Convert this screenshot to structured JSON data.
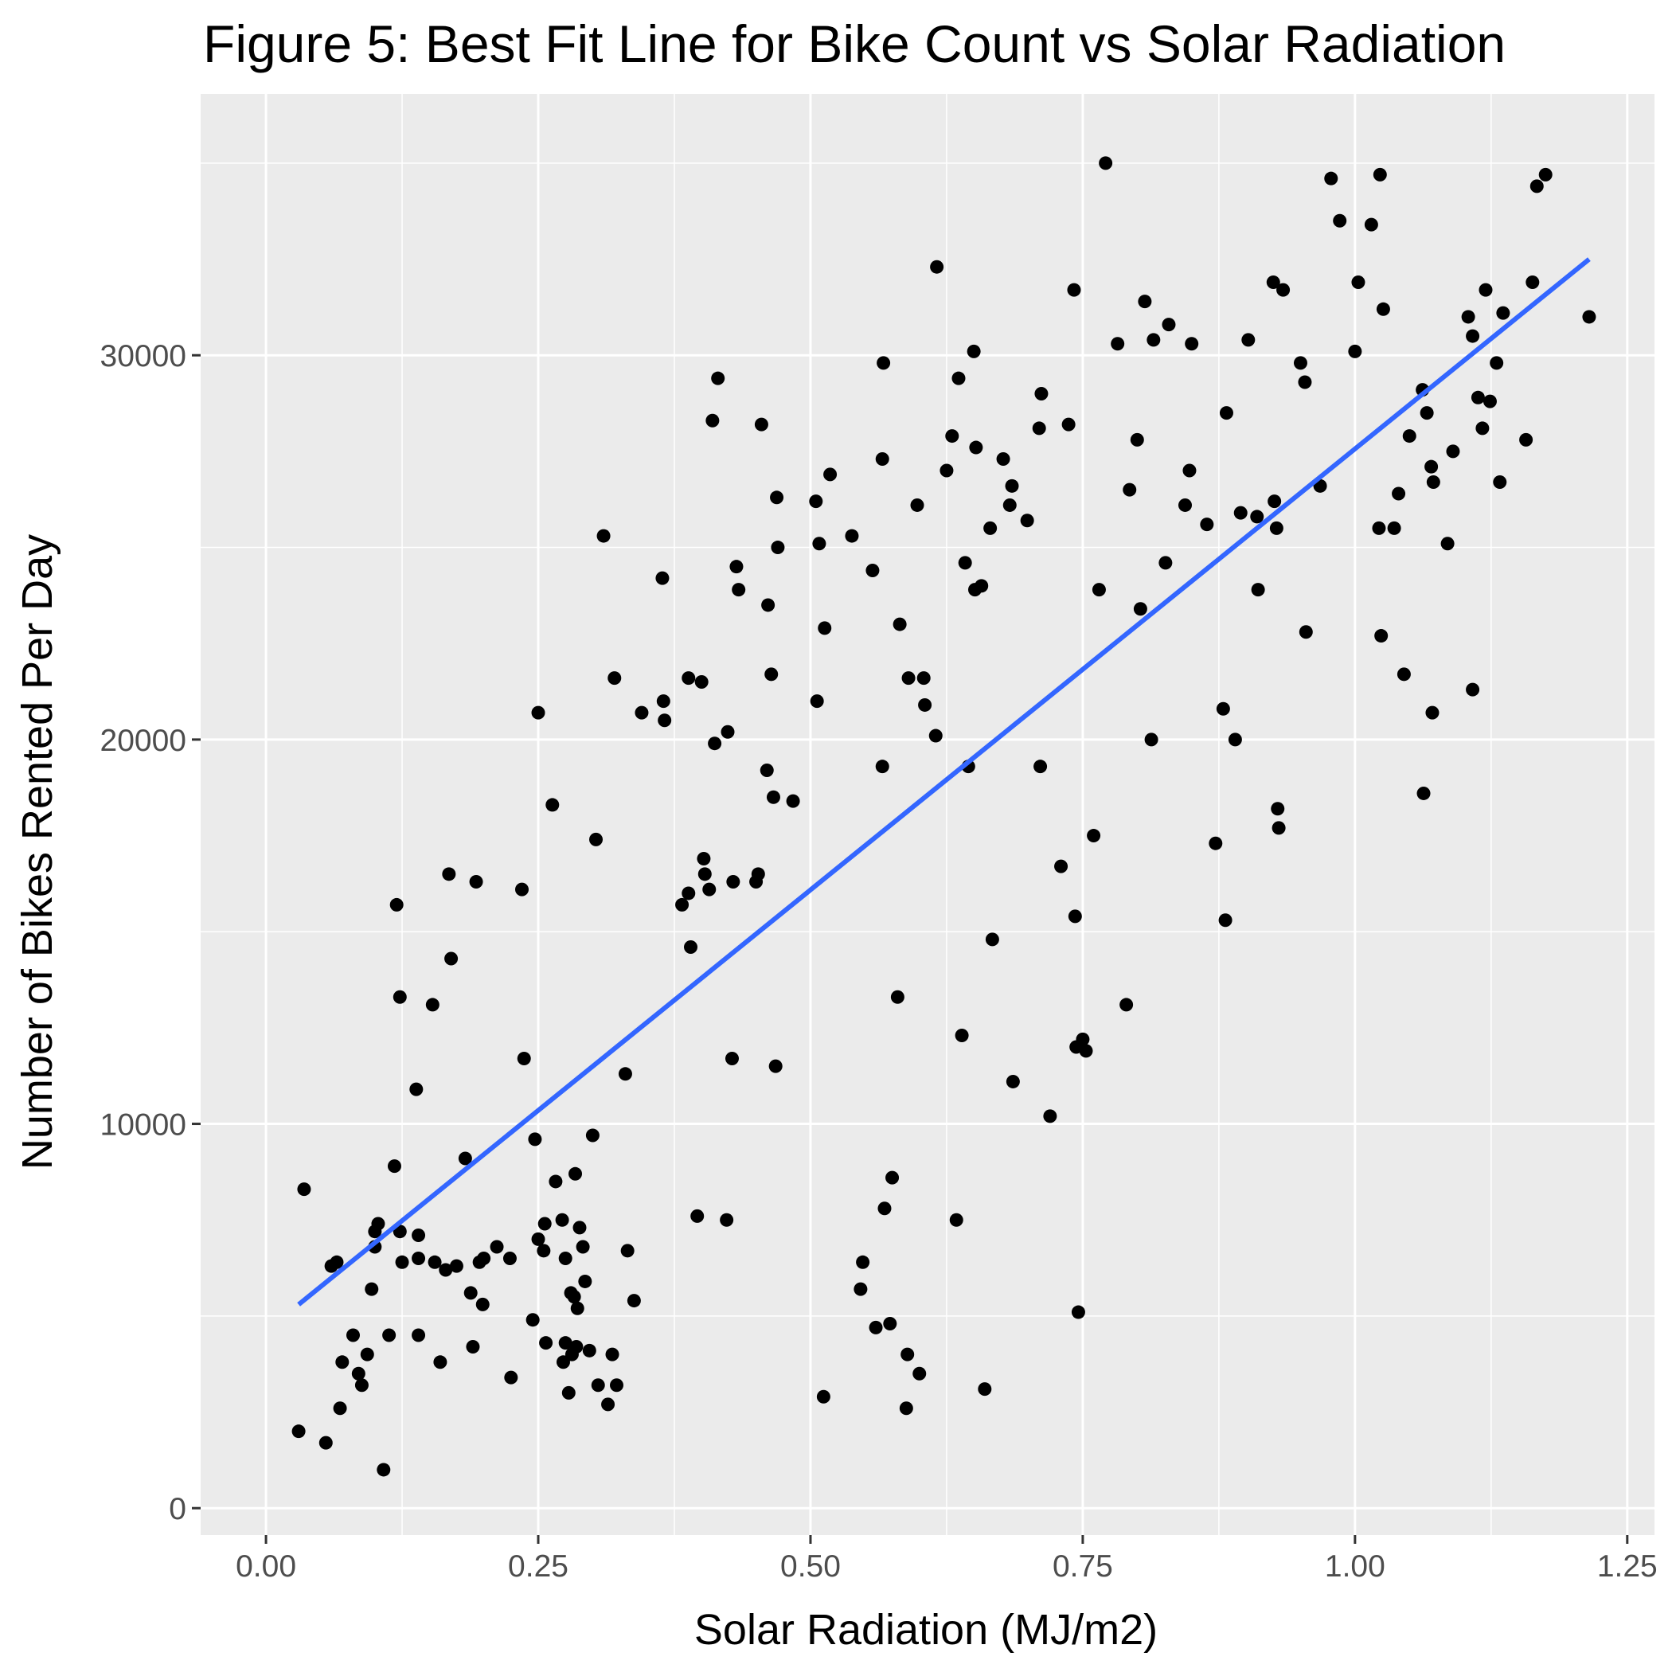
{
  "chart_data": {
    "type": "scatter",
    "title": "Figure 5: Best Fit Line for Bike Count vs Solar Radiation",
    "xlabel": "Solar Radiation (MJ/m2)",
    "ylabel": "Number of Bikes Rented Per Day",
    "xlim": [
      -0.06,
      1.275
    ],
    "ylim": [
      -700,
      36800
    ],
    "xticks": [
      0.0,
      0.25,
      0.5,
      0.75,
      1.0,
      1.25
    ],
    "xtick_labels": [
      "0.00",
      "0.25",
      "0.50",
      "0.75",
      "1.00",
      "1.25"
    ],
    "yticks": [
      0,
      10000,
      20000,
      30000
    ],
    "ytick_labels": [
      "0",
      "10000",
      "20000",
      "30000"
    ],
    "grid": true,
    "background": "#ebebeb",
    "point_color": "#000000",
    "fit_line_color": "#3366ff",
    "fit_line": {
      "x": [
        0.03,
        1.215
      ],
      "y": [
        5300,
        32500
      ]
    },
    "points": [
      [
        0.03,
        2000
      ],
      [
        0.035,
        8300
      ],
      [
        0.055,
        1700
      ],
      [
        0.06,
        6300
      ],
      [
        0.065,
        6400
      ],
      [
        0.068,
        2600
      ],
      [
        0.07,
        3800
      ],
      [
        0.08,
        4500
      ],
      [
        0.085,
        3500
      ],
      [
        0.088,
        3200
      ],
      [
        0.093,
        4000
      ],
      [
        0.097,
        5700
      ],
      [
        0.1,
        6800
      ],
      [
        0.1,
        7200
      ],
      [
        0.103,
        7400
      ],
      [
        0.108,
        1000
      ],
      [
        0.113,
        4500
      ],
      [
        0.118,
        8900
      ],
      [
        0.12,
        15700
      ],
      [
        0.123,
        13300
      ],
      [
        0.123,
        7200
      ],
      [
        0.125,
        6400
      ],
      [
        0.138,
        10900
      ],
      [
        0.14,
        6500
      ],
      [
        0.14,
        4500
      ],
      [
        0.14,
        7100
      ],
      [
        0.153,
        13100
      ],
      [
        0.155,
        6400
      ],
      [
        0.16,
        3800
      ],
      [
        0.165,
        6200
      ],
      [
        0.168,
        16500
      ],
      [
        0.17,
        14300
      ],
      [
        0.175,
        6300
      ],
      [
        0.183,
        9100
      ],
      [
        0.188,
        5600
      ],
      [
        0.19,
        4200
      ],
      [
        0.193,
        16300
      ],
      [
        0.196,
        6400
      ],
      [
        0.199,
        5300
      ],
      [
        0.2,
        6500
      ],
      [
        0.212,
        6800
      ],
      [
        0.224,
        6500
      ],
      [
        0.225,
        3400
      ],
      [
        0.235,
        16100
      ],
      [
        0.237,
        11700
      ],
      [
        0.245,
        4900
      ],
      [
        0.247,
        9600
      ],
      [
        0.25,
        20700
      ],
      [
        0.25,
        7000
      ],
      [
        0.255,
        6700
      ],
      [
        0.256,
        7400
      ],
      [
        0.257,
        4300
      ],
      [
        0.263,
        18300
      ],
      [
        0.266,
        8500
      ],
      [
        0.272,
        7500
      ],
      [
        0.273,
        3800
      ],
      [
        0.275,
        6500
      ],
      [
        0.275,
        4300
      ],
      [
        0.278,
        3000
      ],
      [
        0.28,
        5600
      ],
      [
        0.281,
        4000
      ],
      [
        0.283,
        5500
      ],
      [
        0.284,
        8700
      ],
      [
        0.285,
        4200
      ],
      [
        0.286,
        5200
      ],
      [
        0.288,
        7300
      ],
      [
        0.291,
        6800
      ],
      [
        0.293,
        5900
      ],
      [
        0.297,
        4100
      ],
      [
        0.3,
        9700
      ],
      [
        0.303,
        17400
      ],
      [
        0.305,
        3200
      ],
      [
        0.31,
        25300
      ],
      [
        0.314,
        2700
      ],
      [
        0.318,
        4000
      ],
      [
        0.32,
        21600
      ],
      [
        0.322,
        3200
      ],
      [
        0.33,
        11300
      ],
      [
        0.332,
        6700
      ],
      [
        0.338,
        5400
      ],
      [
        0.345,
        20700
      ],
      [
        0.364,
        24200
      ],
      [
        0.365,
        21000
      ],
      [
        0.366,
        20500
      ],
      [
        0.382,
        15700
      ],
      [
        0.388,
        21600
      ],
      [
        0.388,
        16000
      ],
      [
        0.39,
        14600
      ],
      [
        0.396,
        7600
      ],
      [
        0.4,
        21500
      ],
      [
        0.402,
        16900
      ],
      [
        0.403,
        16500
      ],
      [
        0.407,
        16100
      ],
      [
        0.41,
        28300
      ],
      [
        0.412,
        19900
      ],
      [
        0.415,
        29400
      ],
      [
        0.423,
        7500
      ],
      [
        0.424,
        20200
      ],
      [
        0.428,
        11700
      ],
      [
        0.429,
        16300
      ],
      [
        0.432,
        24500
      ],
      [
        0.434,
        23900
      ],
      [
        0.45,
        16300
      ],
      [
        0.452,
        16500
      ],
      [
        0.455,
        28200
      ],
      [
        0.46,
        19200
      ],
      [
        0.461,
        23500
      ],
      [
        0.464,
        21700
      ],
      [
        0.466,
        18500
      ],
      [
        0.468,
        11500
      ],
      [
        0.469,
        26300
      ],
      [
        0.47,
        25000
      ],
      [
        0.484,
        18400
      ],
      [
        0.505,
        26200
      ],
      [
        0.506,
        21000
      ],
      [
        0.508,
        25100
      ],
      [
        0.512,
        2900
      ],
      [
        0.513,
        22900
      ],
      [
        0.518,
        26900
      ],
      [
        0.538,
        25300
      ],
      [
        0.546,
        5700
      ],
      [
        0.548,
        6400
      ],
      [
        0.557,
        24400
      ],
      [
        0.56,
        4700
      ],
      [
        0.566,
        19300
      ],
      [
        0.566,
        27300
      ],
      [
        0.567,
        29800
      ],
      [
        0.568,
        7800
      ],
      [
        0.573,
        4800
      ],
      [
        0.575,
        8600
      ],
      [
        0.58,
        13300
      ],
      [
        0.582,
        23000
      ],
      [
        0.588,
        2600
      ],
      [
        0.589,
        4000
      ],
      [
        0.59,
        21600
      ],
      [
        0.598,
        26100
      ],
      [
        0.6,
        3500
      ],
      [
        0.604,
        21600
      ],
      [
        0.605,
        20900
      ],
      [
        0.615,
        20100
      ],
      [
        0.616,
        32300
      ],
      [
        0.625,
        27000
      ],
      [
        0.63,
        27900
      ],
      [
        0.634,
        7500
      ],
      [
        0.636,
        29400
      ],
      [
        0.639,
        12300
      ],
      [
        0.642,
        24600
      ],
      [
        0.645,
        19300
      ],
      [
        0.65,
        30100
      ],
      [
        0.651,
        23900
      ],
      [
        0.652,
        27600
      ],
      [
        0.657,
        24000
      ],
      [
        0.66,
        3100
      ],
      [
        0.665,
        25500
      ],
      [
        0.667,
        14800
      ],
      [
        0.677,
        27300
      ],
      [
        0.683,
        26100
      ],
      [
        0.685,
        26600
      ],
      [
        0.686,
        11100
      ],
      [
        0.699,
        25700
      ],
      [
        0.71,
        28100
      ],
      [
        0.711,
        19300
      ],
      [
        0.712,
        29000
      ],
      [
        0.72,
        10200
      ],
      [
        0.73,
        16700
      ],
      [
        0.737,
        28200
      ],
      [
        0.742,
        31700
      ],
      [
        0.743,
        15400
      ],
      [
        0.744,
        12000
      ],
      [
        0.746,
        5100
      ],
      [
        0.75,
        12200
      ],
      [
        0.753,
        11900
      ],
      [
        0.76,
        17500
      ],
      [
        0.765,
        23900
      ],
      [
        0.771,
        35000
      ],
      [
        0.782,
        30300
      ],
      [
        0.79,
        13100
      ],
      [
        0.793,
        26500
      ],
      [
        0.8,
        27800
      ],
      [
        0.803,
        23400
      ],
      [
        0.807,
        31400
      ],
      [
        0.813,
        20000
      ],
      [
        0.815,
        30400
      ],
      [
        0.826,
        24600
      ],
      [
        0.829,
        30800
      ],
      [
        0.844,
        26100
      ],
      [
        0.848,
        27000
      ],
      [
        0.85,
        30300
      ],
      [
        0.864,
        25600
      ],
      [
        0.872,
        17300
      ],
      [
        0.879,
        20800
      ],
      [
        0.881,
        15300
      ],
      [
        0.882,
        28500
      ],
      [
        0.89,
        20000
      ],
      [
        0.895,
        25900
      ],
      [
        0.902,
        30400
      ],
      [
        0.91,
        25800
      ],
      [
        0.911,
        23900
      ],
      [
        0.925,
        31900
      ],
      [
        0.926,
        26200
      ],
      [
        0.928,
        25500
      ],
      [
        0.929,
        18200
      ],
      [
        0.93,
        17700
      ],
      [
        0.934,
        31700
      ],
      [
        0.95,
        29800
      ],
      [
        0.954,
        29300
      ],
      [
        0.955,
        22800
      ],
      [
        0.968,
        26600
      ],
      [
        0.978,
        34600
      ],
      [
        0.986,
        33500
      ],
      [
        1.0,
        30100
      ],
      [
        1.003,
        31900
      ],
      [
        1.015,
        33400
      ],
      [
        1.022,
        25500
      ],
      [
        1.023,
        34700
      ],
      [
        1.024,
        22700
      ],
      [
        1.026,
        31200
      ],
      [
        1.036,
        25500
      ],
      [
        1.04,
        26400
      ],
      [
        1.045,
        21700
      ],
      [
        1.05,
        27900
      ],
      [
        1.062,
        29100
      ],
      [
        1.063,
        18600
      ],
      [
        1.066,
        28500
      ],
      [
        1.07,
        27100
      ],
      [
        1.071,
        20700
      ],
      [
        1.072,
        26700
      ],
      [
        1.085,
        25100
      ],
      [
        1.09,
        27500
      ],
      [
        1.104,
        31000
      ],
      [
        1.108,
        30500
      ],
      [
        1.108,
        21300
      ],
      [
        1.113,
        28900
      ],
      [
        1.117,
        28100
      ],
      [
        1.12,
        31700
      ],
      [
        1.124,
        28800
      ],
      [
        1.13,
        29800
      ],
      [
        1.133,
        26700
      ],
      [
        1.136,
        31100
      ],
      [
        1.157,
        27800
      ],
      [
        1.163,
        31900
      ],
      [
        1.167,
        34400
      ],
      [
        1.175,
        34700
      ],
      [
        1.215,
        31000
      ]
    ]
  }
}
